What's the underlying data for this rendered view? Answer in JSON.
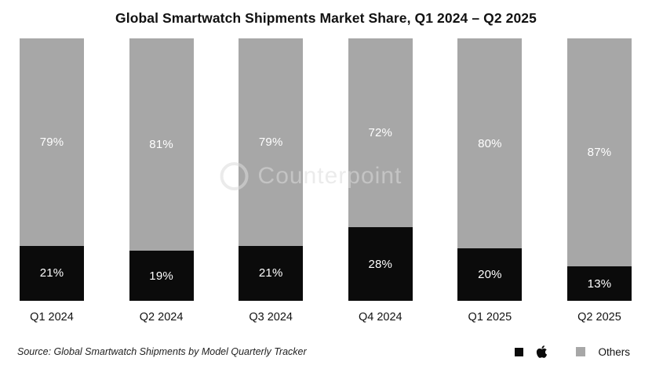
{
  "title": "Global Smartwatch Shipments Market Share, Q1 2024 – Q2 2025",
  "source": "Source: Global Smartwatch Shipments by Model Quarterly Tracker",
  "watermark": "Counterpoint",
  "legend": {
    "apple": "Apple",
    "others": "Others"
  },
  "colors": {
    "apple": "#0b0b0b",
    "others": "#a7a7a7",
    "label_text": "#ffffff"
  },
  "chart_data": {
    "type": "bar",
    "stacked": true,
    "title": "Global Smartwatch Shipments Market Share, Q1 2024 – Q2 2025",
    "categories": [
      "Q1 2024",
      "Q2 2024",
      "Q3 2024",
      "Q4 2024",
      "Q1 2025",
      "Q2 2025"
    ],
    "series": [
      {
        "name": "Apple",
        "values": [
          21,
          19,
          21,
          28,
          20,
          13
        ]
      },
      {
        "name": "Others",
        "values": [
          79,
          81,
          79,
          72,
          80,
          87
        ]
      }
    ],
    "value_format": "percent",
    "ylim": [
      0,
      100
    ],
    "grid": false,
    "legend_position": "bottom-right"
  }
}
